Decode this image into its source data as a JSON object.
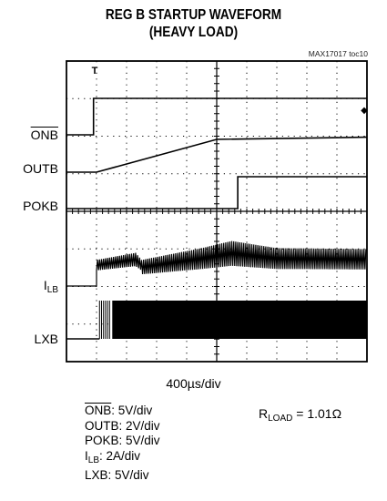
{
  "title_line1": "REG B STARTUP WAVEFORM",
  "title_line2": "(HEAVY LOAD)",
  "figure_tag": "MAX17017 toc10",
  "channel_labels": {
    "onb": "ONB",
    "outb": "OUTB",
    "pokb": "POKB",
    "ilb_main": "I",
    "ilb_sub": "LB",
    "lxb": "LXB"
  },
  "timebase": "400µs/div",
  "scales": {
    "onb_name": "ONB",
    "onb_value": ": 5V/div",
    "outb": "OUTB: 2V/div",
    "pokb": "POKB: 5V/div",
    "ilb_main": "I",
    "ilb_sub": "LB",
    "ilb_value": ": 2A/div",
    "lxb": "LXB: 5V/div"
  },
  "rload": {
    "main": "R",
    "sub": "LOAD",
    "value": " = 1.01Ω"
  },
  "chart_data": {
    "type": "line",
    "title": "REG B STARTUP WAVEFORM (HEAVY LOAD)",
    "x_divisions": 10,
    "y_divisions": 8,
    "x_unit_per_div": "400µs",
    "grid": true,
    "series": [
      {
        "name": "ONB",
        "scale": "5V/div",
        "points": [
          [
            0,
            0
          ],
          [
            0.9,
            0
          ],
          [
            0.9,
            1.0
          ],
          [
            10,
            1.0
          ]
        ]
      },
      {
        "name": "OUTB",
        "scale": "2V/div",
        "points": [
          [
            0,
            0
          ],
          [
            1.0,
            0
          ],
          [
            5.0,
            0.75
          ],
          [
            10,
            0.8
          ]
        ]
      },
      {
        "name": "POKB",
        "scale": "5V/div",
        "points": [
          [
            0,
            0
          ],
          [
            5.7,
            0
          ],
          [
            5.7,
            1.0
          ],
          [
            10,
            1.0
          ]
        ]
      },
      {
        "name": "ILB",
        "scale": "2A/div",
        "points": [
          [
            0,
            0
          ],
          [
            1.0,
            0
          ],
          [
            1.0,
            0.55
          ],
          [
            2.3,
            0.7
          ],
          [
            2.5,
            0.55
          ],
          [
            4.5,
            0.8
          ],
          [
            5.5,
            0.95
          ],
          [
            7.0,
            0.8
          ],
          [
            10,
            0.78
          ]
        ]
      },
      {
        "name": "LXB",
        "scale": "5V/div",
        "points": [
          [
            0,
            0
          ],
          [
            1.1,
            0
          ],
          [
            1.1,
            1.0
          ],
          [
            10,
            1.0
          ]
        ]
      }
    ]
  }
}
